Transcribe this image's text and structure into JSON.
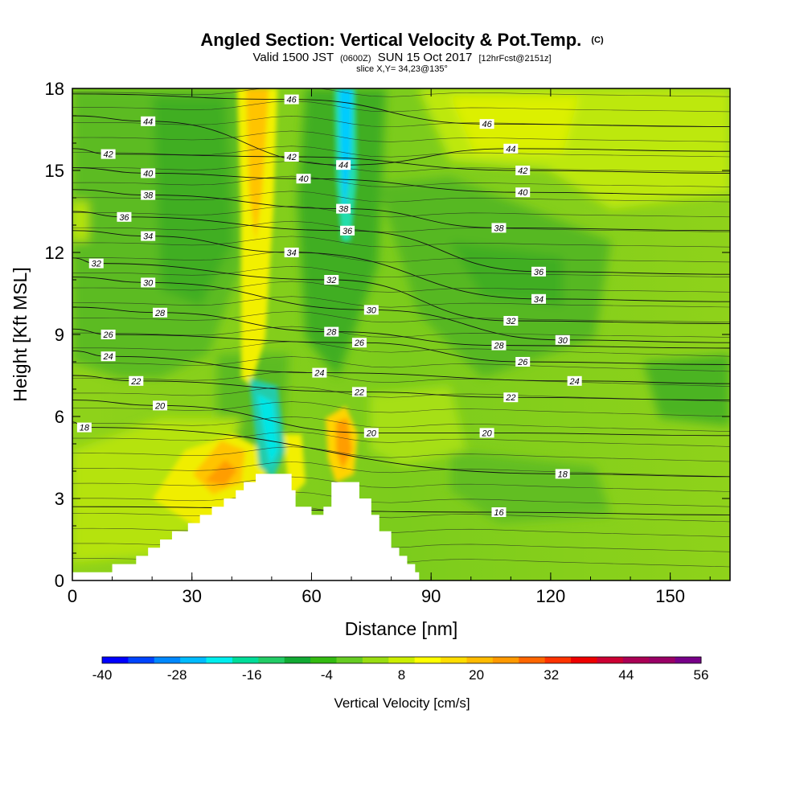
{
  "chart_data": {
    "type": "heatmap",
    "title": "Angled Section: Vertical Velocity & Pot.Temp.",
    "title_unit": "(C)",
    "subtitle": {
      "valid": "Valid 1500 JST",
      "z_time": "(0600Z)",
      "date": "SUN 15 Oct 2017",
      "forecast": "[12hrFcst@2151z]"
    },
    "slice_text": "slice X,Y= 34,23@135°",
    "xlabel": "Distance [nm]",
    "ylabel": "Height [Kft MSL]",
    "xlim": [
      0,
      165
    ],
    "ylim": [
      0,
      18
    ],
    "x_ticks": [
      "0",
      "30",
      "60",
      "90",
      "120",
      "150"
    ],
    "y_ticks": [
      "0",
      "3",
      "6",
      "9",
      "12",
      "15",
      "18"
    ],
    "colorbar": {
      "label": "Vertical Velocity [cm/s]",
      "tick_labels": [
        "-40",
        "-28",
        "-16",
        "-4",
        "8",
        "20",
        "32",
        "44",
        "56"
      ],
      "colors": [
        "#0000ff",
        "#0044ff",
        "#0088ff",
        "#00bbff",
        "#00eeee",
        "#00dd99",
        "#22cc66",
        "#11aa33",
        "#33bb11",
        "#66cc22",
        "#99dd11",
        "#ccee00",
        "#ffff00",
        "#ffdd00",
        "#ffbb00",
        "#ff9900",
        "#ff6600",
        "#ff3300",
        "#ee0000",
        "#cc0033",
        "#aa0055",
        "#990066",
        "#770088"
      ]
    },
    "terrain": [
      [
        0,
        0.3
      ],
      [
        10,
        0.3
      ],
      [
        10,
        0.6
      ],
      [
        16,
        0.6
      ],
      [
        16,
        0.9
      ],
      [
        19,
        0.9
      ],
      [
        19,
        1.2
      ],
      [
        22,
        1.2
      ],
      [
        22,
        1.5
      ],
      [
        25,
        1.5
      ],
      [
        25,
        1.8
      ],
      [
        29,
        1.8
      ],
      [
        29,
        2.1
      ],
      [
        32,
        2.1
      ],
      [
        32,
        2.4
      ],
      [
        35,
        2.4
      ],
      [
        35,
        2.7
      ],
      [
        38,
        2.7
      ],
      [
        38,
        3.0
      ],
      [
        41,
        3.0
      ],
      [
        41,
        3.3
      ],
      [
        43,
        3.3
      ],
      [
        43,
        3.6
      ],
      [
        46,
        3.6
      ],
      [
        46,
        3.9
      ],
      [
        55,
        3.9
      ],
      [
        55,
        3.3
      ],
      [
        56,
        3.3
      ],
      [
        56,
        2.7
      ],
      [
        60,
        2.7
      ],
      [
        60,
        2.4
      ],
      [
        63,
        2.4
      ],
      [
        63,
        2.7
      ],
      [
        65,
        2.7
      ],
      [
        65,
        3.6
      ],
      [
        72,
        3.6
      ],
      [
        72,
        3.0
      ],
      [
        75,
        3.0
      ],
      [
        75,
        2.4
      ],
      [
        77,
        2.4
      ],
      [
        77,
        1.8
      ],
      [
        80,
        1.8
      ],
      [
        80,
        1.2
      ],
      [
        82,
        1.2
      ],
      [
        82,
        0.9
      ],
      [
        84,
        0.9
      ],
      [
        84,
        0.6
      ],
      [
        86,
        0.6
      ],
      [
        86,
        0.3
      ],
      [
        87,
        0.3
      ],
      [
        87,
        0
      ]
    ],
    "isentrope_labels": [
      {
        "x": 19,
        "y": 16.8,
        "text": "44"
      },
      {
        "x": 9,
        "y": 15.6,
        "text": "42"
      },
      {
        "x": 19,
        "y": 14.9,
        "text": "40"
      },
      {
        "x": 19,
        "y": 14.1,
        "text": "38"
      },
      {
        "x": 13,
        "y": 13.3,
        "text": "36"
      },
      {
        "x": 19,
        "y": 12.6,
        "text": "34"
      },
      {
        "x": 6,
        "y": 11.6,
        "text": "32"
      },
      {
        "x": 19,
        "y": 10.9,
        "text": "30"
      },
      {
        "x": 22,
        "y": 9.8,
        "text": "28"
      },
      {
        "x": 9,
        "y": 9.0,
        "text": "26"
      },
      {
        "x": 9,
        "y": 8.2,
        "text": "24"
      },
      {
        "x": 16,
        "y": 7.3,
        "text": "22"
      },
      {
        "x": 22,
        "y": 6.4,
        "text": "20"
      },
      {
        "x": 3,
        "y": 5.6,
        "text": "18"
      },
      {
        "x": 55,
        "y": 17.6,
        "text": "46"
      },
      {
        "x": 55,
        "y": 15.5,
        "text": "42"
      },
      {
        "x": 58,
        "y": 14.7,
        "text": "40"
      },
      {
        "x": 55,
        "y": 12.0,
        "text": "34"
      },
      {
        "x": 68,
        "y": 15.2,
        "text": "44"
      },
      {
        "x": 68,
        "y": 13.6,
        "text": "38"
      },
      {
        "x": 69,
        "y": 12.8,
        "text": "36"
      },
      {
        "x": 65,
        "y": 11.0,
        "text": "32"
      },
      {
        "x": 75,
        "y": 9.9,
        "text": "30"
      },
      {
        "x": 65,
        "y": 9.1,
        "text": "28"
      },
      {
        "x": 72,
        "y": 8.7,
        "text": "26"
      },
      {
        "x": 62,
        "y": 7.6,
        "text": "24"
      },
      {
        "x": 72,
        "y": 6.9,
        "text": "22"
      },
      {
        "x": 75,
        "y": 5.4,
        "text": "20"
      },
      {
        "x": 104,
        "y": 16.7,
        "text": "46"
      },
      {
        "x": 110,
        "y": 15.8,
        "text": "44"
      },
      {
        "x": 113,
        "y": 15.0,
        "text": "42"
      },
      {
        "x": 113,
        "y": 14.2,
        "text": "40"
      },
      {
        "x": 107,
        "y": 12.9,
        "text": "38"
      },
      {
        "x": 117,
        "y": 11.3,
        "text": "36"
      },
      {
        "x": 117,
        "y": 10.3,
        "text": "34"
      },
      {
        "x": 110,
        "y": 9.5,
        "text": "32"
      },
      {
        "x": 123,
        "y": 8.8,
        "text": "30"
      },
      {
        "x": 107,
        "y": 8.6,
        "text": "28"
      },
      {
        "x": 113,
        "y": 8.0,
        "text": "26"
      },
      {
        "x": 126,
        "y": 7.3,
        "text": "24"
      },
      {
        "x": 110,
        "y": 6.7,
        "text": "22"
      },
      {
        "x": 104,
        "y": 5.4,
        "text": "20"
      },
      {
        "x": 123,
        "y": 3.9,
        "text": "18"
      },
      {
        "x": 107,
        "y": 2.5,
        "text": "16"
      }
    ]
  }
}
